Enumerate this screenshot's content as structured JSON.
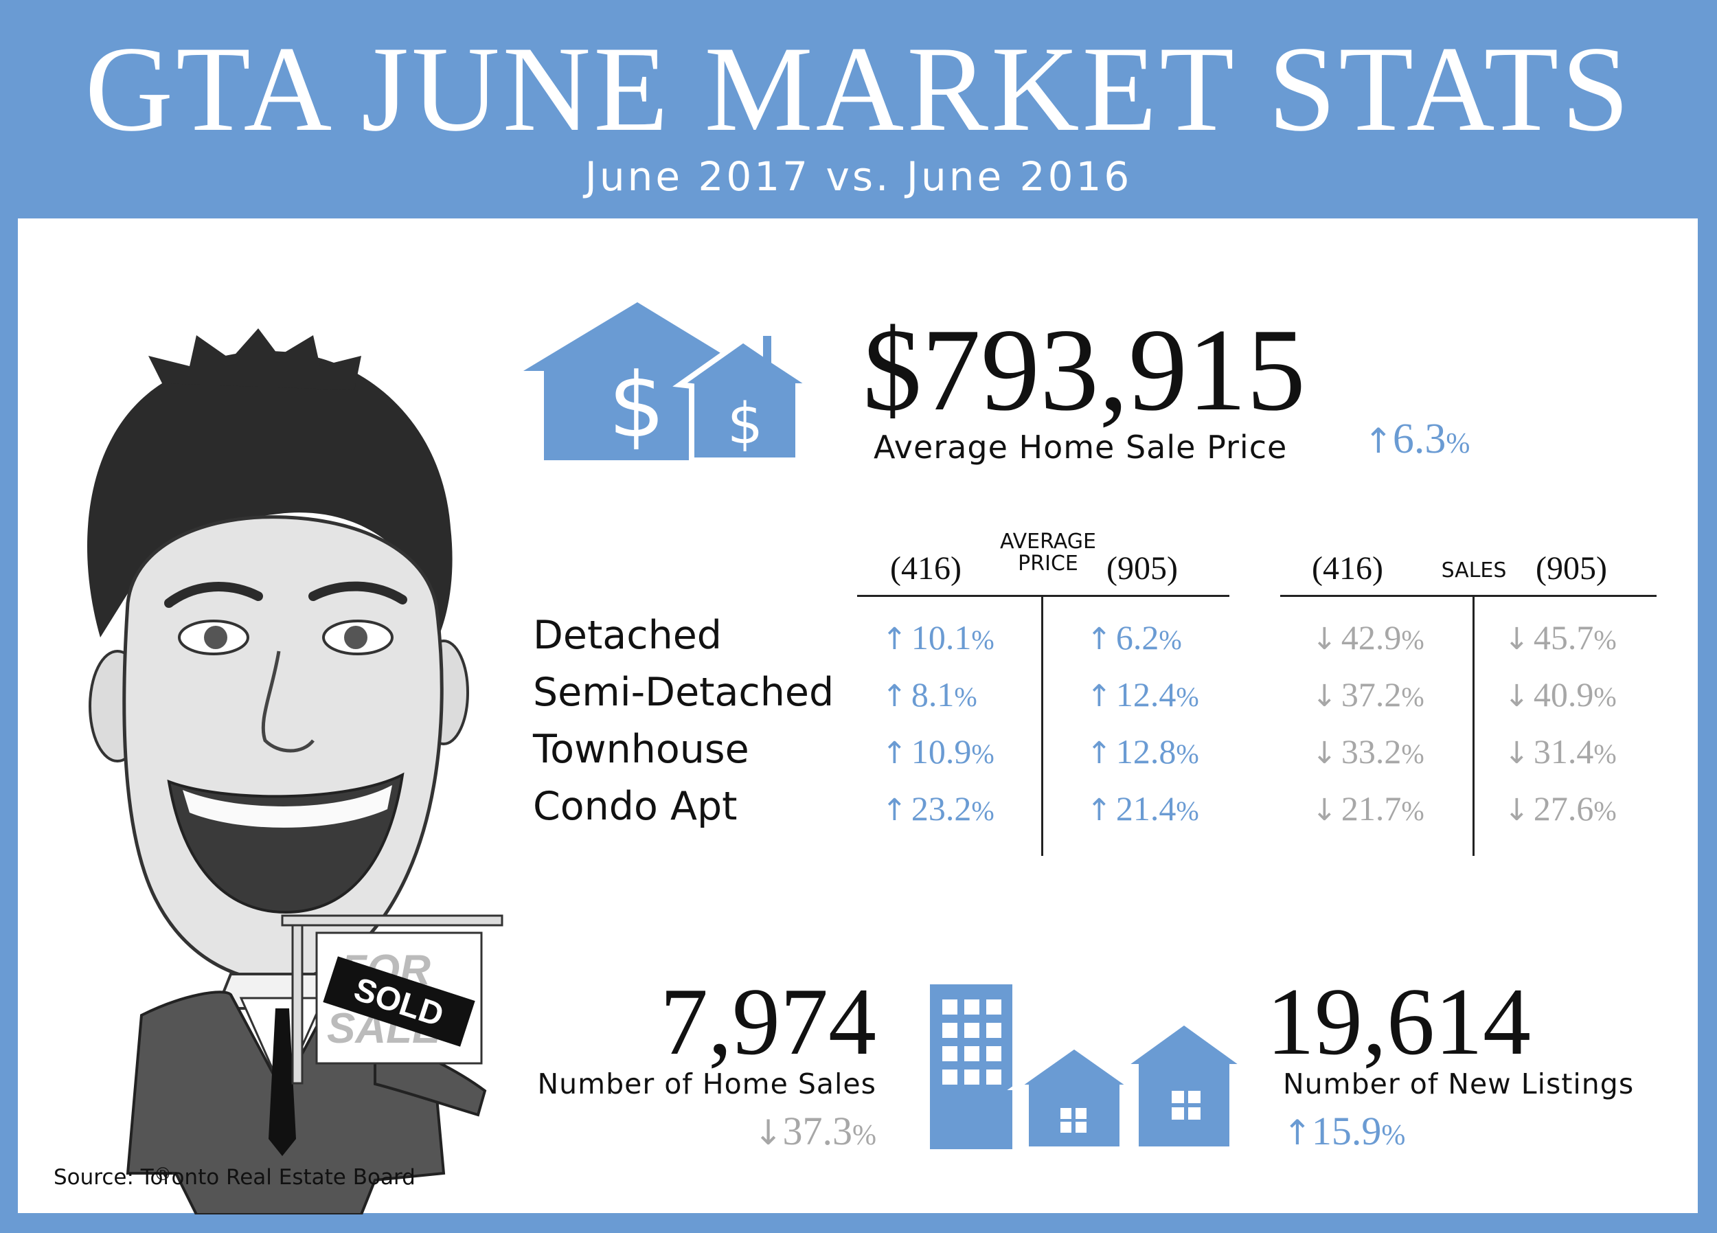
{
  "header": {
    "title": "GTA JUNE MARKET STATS",
    "subtitle": "June 2017 vs. June 2016"
  },
  "average_price": {
    "value": "$793,915",
    "label": "Average Home Sale Price",
    "change": {
      "direction": "up",
      "arrow": "↑",
      "value": "6.3",
      "unit": "%"
    }
  },
  "table": {
    "price_group_label": [
      "AVERAGE",
      "PRICE"
    ],
    "sales_group_label": "SALES",
    "area_416": "(416)",
    "area_905": "(905)",
    "rows": [
      {
        "label": "Detached",
        "price_416": {
          "arrow": "↑",
          "value": "10.1",
          "unit": "%"
        },
        "price_905": {
          "arrow": "↑",
          "value": "6.2",
          "unit": "%"
        },
        "sales_416": {
          "arrow": "↓",
          "value": "42.9",
          "unit": "%"
        },
        "sales_905": {
          "arrow": "↓",
          "value": "45.7",
          "unit": "%"
        }
      },
      {
        "label": "Semi-Detached",
        "price_416": {
          "arrow": "↑",
          "value": "8.1",
          "unit": "%"
        },
        "price_905": {
          "arrow": "↑",
          "value": "12.4",
          "unit": "%"
        },
        "sales_416": {
          "arrow": "↓",
          "value": "37.2",
          "unit": "%"
        },
        "sales_905": {
          "arrow": "↓",
          "value": "40.9",
          "unit": "%"
        }
      },
      {
        "label": "Townhouse",
        "price_416": {
          "arrow": "↑",
          "value": "10.9",
          "unit": "%"
        },
        "price_905": {
          "arrow": "↑",
          "value": "12.8",
          "unit": "%"
        },
        "sales_416": {
          "arrow": "↓",
          "value": "33.2",
          "unit": "%"
        },
        "sales_905": {
          "arrow": "↓",
          "value": "31.4",
          "unit": "%"
        }
      },
      {
        "label": "Condo Apt",
        "price_416": {
          "arrow": "↑",
          "value": "23.2",
          "unit": "%"
        },
        "price_905": {
          "arrow": "↑",
          "value": "21.4",
          "unit": "%"
        },
        "sales_416": {
          "arrow": "↓",
          "value": "21.7",
          "unit": "%"
        },
        "sales_905": {
          "arrow": "↓",
          "value": "27.6",
          "unit": "%"
        }
      }
    ]
  },
  "home_sales": {
    "value": "7,974",
    "label": "Number of Home Sales",
    "change": {
      "direction": "down",
      "arrow": "↓",
      "value": "37.3",
      "unit": "%"
    }
  },
  "new_listings": {
    "value": "19,614",
    "label": "Number of New Listings",
    "change": {
      "direction": "up",
      "arrow": "↑",
      "value": "15.9",
      "unit": "%"
    }
  },
  "caricature": {
    "sign_text": "SOLD",
    "sign_back_text": [
      "FOR",
      "SALE"
    ],
    "registered_mark": "®"
  },
  "source": "Source: Toronto Real Estate Board",
  "colors": {
    "accent": "#6a9bd3",
    "down": "#a7a7a7",
    "text": "#111111"
  },
  "icons": [
    "houses-dollar-icon",
    "buildings-houses-icon"
  ]
}
